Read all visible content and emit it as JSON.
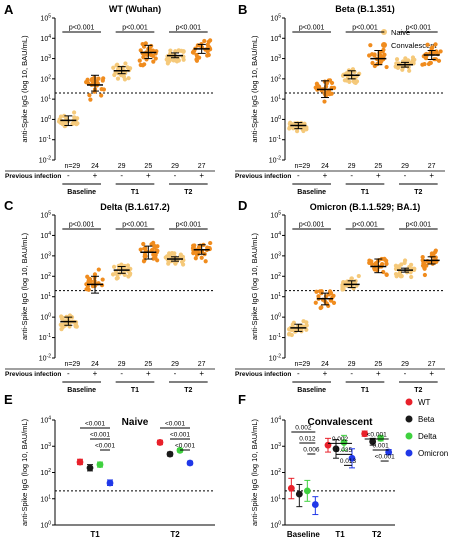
{
  "figure": {
    "ylabel_top": "anti-Spike IgG (log 10, BAU/mL)",
    "ylabel_bottom": "anti-Spike IgG (log 10, BAU/mL)"
  },
  "legend_top": {
    "naive": "Naive",
    "convalescent": "Convalescent"
  },
  "row_labels": {
    "n": [
      "n=29",
      "24",
      "29",
      "25",
      "29",
      "27"
    ],
    "prev_infection": "Previous infection",
    "signs": [
      "-",
      "+",
      "-",
      "+",
      "-",
      "+"
    ],
    "groups": [
      "Baseline",
      "T1",
      "T2"
    ]
  },
  "legend_bottom": {
    "wt": "WT",
    "beta": "Beta",
    "delta": "Delta",
    "omicron": "Omicron"
  },
  "colors": {
    "naive": "#f5c97a",
    "convalescent": "#f08c1e",
    "wt": "#e8202a",
    "beta": "#1a1a1a",
    "delta": "#3fd13f",
    "omicron": "#2038e8",
    "threshold": "#000000"
  },
  "chart_data": [
    {
      "panel_letter": "A",
      "title": "WT (Wuhan)",
      "type": "scatter",
      "yscale": "log",
      "ylim": [
        0.01,
        100000
      ],
      "threshold": 20,
      "categories": [
        "Baseline -",
        "Baseline +",
        "T1 -",
        "T1 +",
        "T2 -",
        "T2 +"
      ],
      "series": [
        {
          "medians": [
            0.9,
            50,
            250,
            2000,
            1400,
            3000
          ],
          "ci_low": [
            0.5,
            25,
            180,
            1000,
            1100,
            1800
          ],
          "ci_high": [
            1.5,
            150,
            400,
            4500,
            1900,
            5000
          ]
        }
      ],
      "brackets": [
        {
          "from": 0,
          "to": 1,
          "label": "p<0.001"
        },
        {
          "from": 2,
          "to": 3,
          "label": "p<0.001"
        },
        {
          "from": 4,
          "to": 5,
          "label": "p<0.001"
        }
      ]
    },
    {
      "panel_letter": "B",
      "title": "Beta (B.1.351)",
      "type": "scatter",
      "yscale": "log",
      "ylim": [
        0.01,
        100000
      ],
      "threshold": 20,
      "categories": [
        "Baseline -",
        "Baseline +",
        "T1 -",
        "T1 +",
        "T2 -",
        "T2 +"
      ],
      "series": [
        {
          "medians": [
            0.5,
            30,
            150,
            1000,
            500,
            1500
          ],
          "ci_low": [
            0.35,
            12,
            100,
            500,
            380,
            900
          ],
          "ci_high": [
            0.7,
            80,
            250,
            2500,
            650,
            2500
          ]
        }
      ],
      "brackets": [
        {
          "from": 0,
          "to": 1,
          "label": "p<0.001"
        },
        {
          "from": 2,
          "to": 3,
          "label": "p<0.001"
        },
        {
          "from": 4,
          "to": 5,
          "label": "p<0.001"
        }
      ]
    },
    {
      "panel_letter": "C",
      "title": "Delta (B.1.617.2)",
      "type": "scatter",
      "yscale": "log",
      "ylim": [
        0.01,
        100000
      ],
      "threshold": 20,
      "categories": [
        "Baseline -",
        "Baseline +",
        "T1 -",
        "T1 +",
        "T2 -",
        "T2 +"
      ],
      "series": [
        {
          "medians": [
            0.6,
            40,
            200,
            1500,
            700,
            2000
          ],
          "ci_low": [
            0.4,
            15,
            140,
            700,
            550,
            1200
          ],
          "ci_high": [
            1.0,
            100,
            300,
            3000,
            900,
            3500
          ]
        }
      ],
      "brackets": [
        {
          "from": 0,
          "to": 1,
          "label": "p<0.001"
        },
        {
          "from": 2,
          "to": 3,
          "label": "p<0.001"
        },
        {
          "from": 4,
          "to": 5,
          "label": "p<0.001"
        }
      ]
    },
    {
      "panel_letter": "D",
      "title": "Omicron (B.1.1.529; BA.1)",
      "type": "scatter",
      "yscale": "log",
      "ylim": [
        0.01,
        100000
      ],
      "threshold": 20,
      "categories": [
        "Baseline -",
        "Baseline +",
        "T1 -",
        "T1 +",
        "T2 -",
        "T2 +"
      ],
      "series": [
        {
          "medians": [
            0.3,
            8,
            40,
            300,
            200,
            600
          ],
          "ci_low": [
            0.2,
            4,
            28,
            150,
            160,
            400
          ],
          "ci_high": [
            0.45,
            15,
            60,
            700,
            250,
            900
          ]
        }
      ],
      "brackets": [
        {
          "from": 0,
          "to": 1,
          "label": "p<0.001"
        },
        {
          "from": 2,
          "to": 3,
          "label": "p<0.001"
        },
        {
          "from": 4,
          "to": 5,
          "label": "p<0.001"
        }
      ]
    },
    {
      "panel_letter": "E",
      "title": "Naive",
      "type": "scatter",
      "yscale": "log",
      "ylim": [
        1,
        10000
      ],
      "threshold": 20,
      "categories": [
        "T1",
        "T2"
      ],
      "series": [
        {
          "name": "WT",
          "values": [
            250,
            1400
          ],
          "ci_low": [
            200,
            1150
          ],
          "ci_high": [
            320,
            1700
          ]
        },
        {
          "name": "Beta",
          "values": [
            150,
            500
          ],
          "ci_low": [
            115,
            420
          ],
          "ci_high": [
            200,
            600
          ]
        },
        {
          "name": "Delta",
          "values": [
            200,
            700
          ],
          "ci_low": [
            160,
            600
          ],
          "ci_high": [
            250,
            820
          ]
        },
        {
          "name": "Omicron",
          "values": [
            40,
            230
          ],
          "ci_low": [
            32,
            195
          ],
          "ci_high": [
            52,
            270
          ]
        }
      ],
      "brackets": [
        {
          "group": "T1",
          "series_from": "WT",
          "series_to": "Omicron",
          "label": "<0.001"
        },
        {
          "group": "T1",
          "series_from": "Beta",
          "series_to": "Omicron",
          "label": "<0.001"
        },
        {
          "group": "T1",
          "series_from": "Delta",
          "series_to": "Omicron",
          "label": "<0.001"
        },
        {
          "group": "T2",
          "series_from": "WT",
          "series_to": "Omicron",
          "label": "<0.001"
        },
        {
          "group": "T2",
          "series_from": "Beta",
          "series_to": "Omicron",
          "label": "<0.001"
        },
        {
          "group": "T2",
          "series_from": "Delta",
          "series_to": "Omicron",
          "label": "<0.001"
        }
      ]
    },
    {
      "panel_letter": "F",
      "title": "Convalescent",
      "type": "scatter",
      "yscale": "log",
      "ylim": [
        1,
        10000
      ],
      "threshold": 20,
      "categories": [
        "Baseline",
        "T1",
        "T2"
      ],
      "series": [
        {
          "name": "WT",
          "values": [
            25,
            1100,
            3000
          ],
          "ci_low": [
            10,
            600,
            2400
          ],
          "ci_high": [
            60,
            2000,
            3800
          ]
        },
        {
          "name": "Beta",
          "values": [
            15,
            800,
            1500
          ],
          "ci_low": [
            5,
            350,
            1100
          ],
          "ci_high": [
            35,
            1800,
            2000
          ]
        },
        {
          "name": "Delta",
          "values": [
            20,
            1400,
            2000
          ],
          "ci_low": [
            8,
            700,
            1600
          ],
          "ci_high": [
            50,
            2600,
            2600
          ]
        },
        {
          "name": "Omicron",
          "values": [
            6,
            350,
            600
          ],
          "ci_low": [
            2.5,
            150,
            480
          ],
          "ci_high": [
            12,
            800,
            750
          ]
        }
      ],
      "brackets": [
        {
          "group": "Baseline",
          "series_from": "WT",
          "series_to": "Omicron",
          "label": "0.002"
        },
        {
          "group": "Baseline",
          "series_from": "Beta",
          "series_to": "Omicron",
          "label": "0.012"
        },
        {
          "group": "Baseline",
          "series_from": "Delta",
          "series_to": "Omicron",
          "label": "0.006"
        },
        {
          "group": "T1",
          "series_from": "WT",
          "series_to": "Omicron",
          "label": "0.002"
        },
        {
          "group": "T1",
          "series_from": "Beta",
          "series_to": "Omicron",
          "label": "0.035"
        },
        {
          "group": "T1",
          "series_from": "Delta",
          "series_to": "Omicron",
          "label": "0.013"
        },
        {
          "group": "T2",
          "series_from": "WT",
          "series_to": "Omicron",
          "label": "<0.001"
        },
        {
          "group": "T2",
          "series_from": "Beta",
          "series_to": "Omicron",
          "label": "0.001"
        },
        {
          "group": "T2",
          "series_from": "Delta",
          "series_to": "Omicron",
          "label": "<0.001"
        }
      ]
    }
  ]
}
